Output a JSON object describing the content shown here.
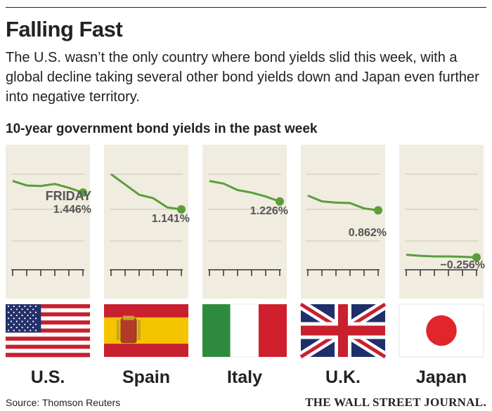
{
  "title": "Falling Fast",
  "subtitle": "The U.S. wasn’t the only country where bond yields slid this week, with a global decline taking several other bond yields down and Japan even further into negative territory.",
  "chart_heading": "10-year government bond yields in the past week",
  "source": "Source: Thomson Reuters",
  "credit": "THE WALL STREET JOURNAL.",
  "colors": {
    "panel_bg": "#f0ece0",
    "line": "#5a9e3a",
    "grid": "#c9c4b4",
    "text": "#222222"
  },
  "chart_data": [
    {
      "type": "line",
      "country": "U.S.",
      "flag": "us-flag-icon",
      "values": [
        1.485,
        1.47,
        1.468,
        1.475,
        1.462,
        1.446
      ],
      "ylim": [
        1.22,
        1.55
      ],
      "end_label_top": "FRIDAY",
      "end_label": "1.446%"
    },
    {
      "type": "line",
      "country": "Spain",
      "flag": "spain-flag-icon",
      "values": [
        1.295,
        1.25,
        1.205,
        1.19,
        1.15,
        1.141
      ],
      "ylim": [
        0.92,
        1.35
      ],
      "end_label": "1.141%"
    },
    {
      "type": "line",
      "country": "Italy",
      "flag": "italy-flag-icon",
      "values": [
        1.305,
        1.295,
        1.27,
        1.26,
        1.245,
        1.226
      ],
      "ylim": [
        1.0,
        1.38
      ],
      "end_label": "1.226%"
    },
    {
      "type": "line",
      "country": "U.K.",
      "flag": "uk-flag-icon",
      "values": [
        0.925,
        0.9,
        0.895,
        0.893,
        0.87,
        0.862
      ],
      "ylim": [
        0.65,
        1.07
      ],
      "end_label": "0.862%"
    },
    {
      "type": "line",
      "country": "Japan",
      "flag": "japan-flag-icon",
      "values": [
        -0.24,
        -0.246,
        -0.25,
        -0.25,
        -0.252,
        -0.256
      ],
      "ylim": [
        -0.4,
        0.2
      ],
      "end_label": "−0.256%"
    }
  ]
}
